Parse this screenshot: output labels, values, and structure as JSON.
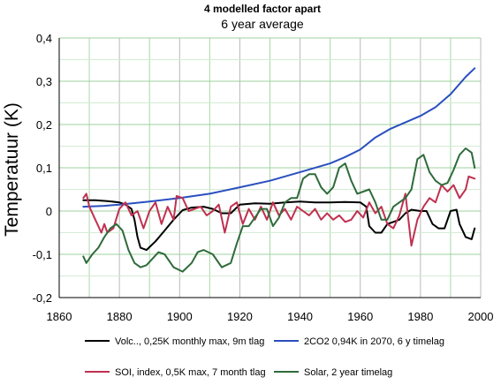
{
  "chart_data": {
    "type": "line",
    "title": "4 modelled factor apart",
    "subtitle": "6 year average",
    "xlabel": "",
    "ylabel": "Temperatuur (K)",
    "xlim": [
      1860,
      2000
    ],
    "ylim": [
      -0.2,
      0.4
    ],
    "x_ticks": [
      1860,
      1880,
      1900,
      1920,
      1940,
      1960,
      1980,
      2000
    ],
    "x_tick_labels": [
      "1860",
      "1880",
      "1900",
      "1920",
      "1940",
      "1960",
      "1980",
      "2000"
    ],
    "y_ticks": [
      -0.2,
      -0.1,
      0,
      0.1,
      0.2,
      0.3,
      0.4
    ],
    "y_tick_labels": [
      "-0,2",
      "-0,1",
      "0",
      "0,1",
      "0,2",
      "0,3",
      "0,4"
    ],
    "grid": true,
    "legend_position": "bottom",
    "series": [
      {
        "name": "Volc.., 0,25K monthly max, 9m tlag",
        "color": "#000000",
        "x": [
          1868,
          1872,
          1876,
          1880,
          1882,
          1884,
          1885,
          1886,
          1887,
          1889,
          1892,
          1895,
          1898,
          1901,
          1904,
          1908,
          1911,
          1914,
          1917,
          1920,
          1925,
          1930,
          1935,
          1940,
          1945,
          1950,
          1955,
          1960,
          1962,
          1963,
          1965,
          1967,
          1969,
          1971,
          1973,
          1975,
          1977,
          1980,
          1982,
          1984,
          1986,
          1988,
          1990,
          1992,
          1993,
          1995,
          1997,
          1998
        ],
        "y": [
          0.025,
          0.025,
          0.023,
          0.02,
          0.015,
          0.005,
          -0.02,
          -0.06,
          -0.085,
          -0.09,
          -0.07,
          -0.045,
          -0.02,
          0.002,
          0.008,
          0.01,
          0.005,
          -0.005,
          -0.005,
          0.015,
          0.018,
          0.017,
          0.02,
          0.022,
          0.02,
          0.02,
          0.021,
          0.02,
          0.01,
          -0.035,
          -0.05,
          -0.05,
          -0.03,
          -0.025,
          -0.02,
          -0.005,
          0.003,
          0.0,
          0.0,
          -0.03,
          -0.04,
          -0.04,
          0.0,
          0.003,
          -0.03,
          -0.06,
          -0.065,
          -0.04
        ]
      },
      {
        "name": "2CO2 0,94K in 2070, 6 y timelag",
        "color": "#2a4fbf",
        "x": [
          1868,
          1875,
          1880,
          1890,
          1900,
          1910,
          1920,
          1930,
          1940,
          1950,
          1955,
          1960,
          1965,
          1970,
          1975,
          1980,
          1985,
          1990,
          1995,
          1998
        ],
        "y": [
          0.01,
          0.012,
          0.015,
          0.022,
          0.03,
          0.04,
          0.055,
          0.07,
          0.09,
          0.11,
          0.125,
          0.142,
          0.17,
          0.19,
          0.205,
          0.22,
          0.24,
          0.27,
          0.31,
          0.33
        ]
      },
      {
        "name": "SOI, index, 0,5K max, 7 month tlag",
        "color": "#c03050",
        "x": [
          1868,
          1869,
          1870,
          1872,
          1874,
          1875,
          1876,
          1878,
          1880,
          1882,
          1884,
          1886,
          1888,
          1890,
          1892,
          1894,
          1896,
          1898,
          1899,
          1901,
          1903,
          1905,
          1907,
          1909,
          1911,
          1913,
          1915,
          1917,
          1919,
          1921,
          1923,
          1925,
          1927,
          1929,
          1931,
          1933,
          1935,
          1937,
          1939,
          1941,
          1943,
          1945,
          1947,
          1949,
          1951,
          1953,
          1955,
          1957,
          1959,
          1961,
          1963,
          1965,
          1967,
          1969,
          1971,
          1973,
          1975,
          1977,
          1979,
          1981,
          1983,
          1985,
          1987,
          1989,
          1991,
          1993,
          1995,
          1996,
          1998
        ],
        "y": [
          0.03,
          0.04,
          0.01,
          -0.02,
          -0.05,
          -0.03,
          -0.05,
          -0.04,
          0.005,
          0.02,
          -0.01,
          0.0,
          -0.04,
          0.0,
          0.02,
          -0.03,
          0.01,
          -0.02,
          0.035,
          0.03,
          0.0,
          0.005,
          0.01,
          -0.01,
          0.0,
          0.015,
          -0.05,
          0.01,
          0.02,
          -0.03,
          0.005,
          -0.02,
          0.01,
          -0.02,
          0.02,
          -0.01,
          0.005,
          -0.02,
          0.01,
          0.0,
          -0.01,
          0.005,
          -0.02,
          -0.005,
          -0.02,
          -0.01,
          -0.025,
          -0.02,
          0.0,
          -0.015,
          0.02,
          -0.005,
          0.01,
          -0.03,
          -0.04,
          -0.01,
          0.04,
          -0.08,
          -0.02,
          0.01,
          0.03,
          0.02,
          0.06,
          0.045,
          0.06,
          0.03,
          0.05,
          0.08,
          0.075
        ]
      },
      {
        "name": "Solar, 2 year timelag",
        "color": "#2f6b3a",
        "x": [
          1868,
          1869,
          1871,
          1873,
          1875,
          1877,
          1879,
          1881,
          1883,
          1885,
          1887,
          1889,
          1891,
          1893,
          1895,
          1898,
          1901,
          1904,
          1906,
          1908,
          1911,
          1914,
          1917,
          1919,
          1921,
          1923,
          1925,
          1927,
          1929,
          1931,
          1933,
          1935,
          1937,
          1939,
          1941,
          1943,
          1945,
          1947,
          1949,
          1951,
          1953,
          1955,
          1957,
          1959,
          1961,
          1963,
          1965,
          1967,
          1969,
          1971,
          1973,
          1975,
          1977,
          1979,
          1981,
          1983,
          1985,
          1987,
          1989,
          1991,
          1993,
          1995,
          1997,
          1998
        ],
        "y": [
          -0.105,
          -0.12,
          -0.1,
          -0.085,
          -0.06,
          -0.04,
          -0.03,
          -0.045,
          -0.09,
          -0.12,
          -0.13,
          -0.125,
          -0.11,
          -0.095,
          -0.1,
          -0.13,
          -0.14,
          -0.12,
          -0.095,
          -0.09,
          -0.1,
          -0.13,
          -0.12,
          -0.075,
          -0.035,
          -0.035,
          -0.015,
          0.005,
          0.005,
          -0.035,
          -0.015,
          0.02,
          0.03,
          0.03,
          0.075,
          0.085,
          0.085,
          0.055,
          0.04,
          0.055,
          0.1,
          0.11,
          0.07,
          0.04,
          0.045,
          0.05,
          0.02,
          -0.02,
          -0.02,
          0.01,
          0.02,
          0.03,
          0.05,
          0.12,
          0.13,
          0.09,
          0.07,
          0.06,
          0.065,
          0.095,
          0.13,
          0.145,
          0.135,
          0.1
        ]
      }
    ]
  }
}
